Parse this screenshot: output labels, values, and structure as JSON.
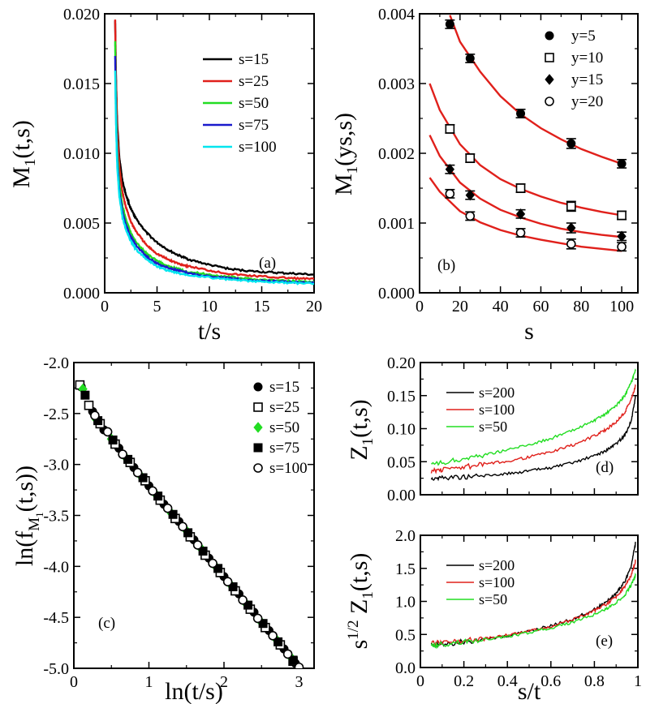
{
  "chart_data": [
    {
      "panel": "a",
      "type": "line",
      "tag": "(a)",
      "xlabel": "t/s",
      "ylabel": "M1(t,s)",
      "xlim": [
        0,
        20
      ],
      "ylim": [
        0,
        0.02
      ],
      "xticks": [
        0,
        5,
        10,
        15,
        20
      ],
      "yticks": [
        0.0,
        0.005,
        0.01,
        0.015,
        0.02
      ],
      "xtick_labels": [
        "0",
        "5",
        "10",
        "15",
        "20"
      ],
      "ytick_labels": [
        "0.000",
        "0.005",
        "0.010",
        "0.015",
        "0.020"
      ],
      "legend_position": "top-right",
      "series": [
        {
          "name": "s=15",
          "color": "#000000",
          "x": [
            1.0,
            1.05,
            1.1,
            1.2,
            1.4,
            1.7,
            2.0,
            2.5,
            3,
            4,
            5,
            6,
            7,
            8,
            10,
            12,
            14,
            16,
            18,
            20
          ],
          "y": [
            0.0196,
            0.0168,
            0.0147,
            0.0121,
            0.0097,
            0.008,
            0.0071,
            0.006,
            0.0053,
            0.0043,
            0.0036,
            0.0031,
            0.0027,
            0.0024,
            0.002,
            0.0017,
            0.00155,
            0.00145,
            0.00138,
            0.0013
          ]
        },
        {
          "name": "s=25",
          "color": "#e0201b",
          "x": [
            1.0,
            1.05,
            1.1,
            1.2,
            1.4,
            1.7,
            2.0,
            2.5,
            3,
            4,
            5,
            6,
            7,
            8,
            10,
            12,
            14,
            16,
            18,
            20
          ],
          "y": [
            0.0195,
            0.0165,
            0.0143,
            0.0115,
            0.009,
            0.0072,
            0.0062,
            0.0051,
            0.0044,
            0.0034,
            0.0028,
            0.0024,
            0.0021,
            0.0019,
            0.0016,
            0.00135,
            0.00122,
            0.00112,
            0.00104,
            0.00098
          ]
        },
        {
          "name": "s=50",
          "color": "#22dd22",
          "x": [
            1.0,
            1.05,
            1.1,
            1.2,
            1.4,
            1.7,
            2.0,
            2.5,
            3,
            4,
            5,
            6,
            7,
            8,
            10,
            12,
            14,
            16,
            18,
            20
          ],
          "y": [
            0.018,
            0.015,
            0.0128,
            0.0101,
            0.0078,
            0.0062,
            0.0053,
            0.0043,
            0.0036,
            0.0028,
            0.0023,
            0.0019,
            0.0017,
            0.0015,
            0.0013,
            0.00112,
            0.00098,
            0.0009,
            0.00084,
            0.0008
          ]
        },
        {
          "name": "s=75",
          "color": "#1a1acc",
          "x": [
            1.0,
            1.05,
            1.1,
            1.2,
            1.4,
            1.7,
            2.0,
            2.5,
            3,
            4,
            5,
            6,
            7,
            8,
            10,
            12,
            14,
            16,
            18,
            20
          ],
          "y": [
            0.017,
            0.0142,
            0.012,
            0.0095,
            0.0073,
            0.0058,
            0.0049,
            0.004,
            0.0034,
            0.0026,
            0.0021,
            0.0018,
            0.0016,
            0.0014,
            0.0012,
            0.00103,
            0.0009,
            0.00082,
            0.00076,
            0.00072
          ]
        },
        {
          "name": "s=100",
          "color": "#00e5ee",
          "x": [
            1.0,
            1.05,
            1.1,
            1.2,
            1.4,
            1.7,
            2.0,
            2.5,
            3,
            4,
            5,
            6,
            7,
            8,
            10,
            12,
            14,
            16,
            18,
            20
          ],
          "y": [
            0.016,
            0.0135,
            0.0114,
            0.009,
            0.0069,
            0.0054,
            0.0046,
            0.0037,
            0.0031,
            0.0024,
            0.0019,
            0.0016,
            0.0014,
            0.0013,
            0.0011,
            0.00094,
            0.00083,
            0.00075,
            0.0007,
            0.00066
          ]
        }
      ]
    },
    {
      "panel": "b",
      "type": "scatter",
      "tag": "(b)",
      "xlabel": "s",
      "ylabel": "M1(ys,s)",
      "xlim": [
        0,
        108
      ],
      "ylim": [
        0,
        0.004
      ],
      "xticks": [
        0,
        20,
        40,
        60,
        80,
        100
      ],
      "yticks": [
        0.0,
        0.001,
        0.002,
        0.003,
        0.004
      ],
      "xtick_labels": [
        "0",
        "20",
        "40",
        "60",
        "80",
        "100"
      ],
      "ytick_labels": [
        "0.000",
        "0.001",
        "0.002",
        "0.003",
        "0.004"
      ],
      "legend_position": "top-right",
      "series": [
        {
          "name": "y=5",
          "marker": "filled-circle",
          "x": [
            15,
            25,
            50,
            75,
            100
          ],
          "y": [
            0.00385,
            0.00336,
            0.00257,
            0.00214,
            0.00185
          ],
          "err": [
            6e-05,
            6e-05,
            6e-05,
            7e-05,
            6e-05
          ]
        },
        {
          "name": "y=10",
          "marker": "open-square",
          "x": [
            15,
            25,
            50,
            75,
            100
          ],
          "y": [
            0.00235,
            0.00193,
            0.0015,
            0.00124,
            0.00111
          ],
          "err": [
            6e-05,
            6e-05,
            6e-05,
            7e-05,
            6e-05
          ]
        },
        {
          "name": "y=15",
          "marker": "filled-diamond",
          "x": [
            15,
            25,
            50,
            75,
            100
          ],
          "y": [
            0.00177,
            0.0014,
            0.00113,
            0.00093,
            0.00081
          ],
          "err": [
            6e-05,
            6e-05,
            6e-05,
            7e-05,
            6e-05
          ]
        },
        {
          "name": "y=20",
          "marker": "open-circle",
          "x": [
            15,
            25,
            50,
            75,
            100
          ],
          "y": [
            0.00142,
            0.0011,
            0.00086,
            0.0007,
            0.00066
          ],
          "err": [
            6e-05,
            6e-05,
            6e-05,
            7e-05,
            6e-05
          ]
        }
      ],
      "fits": [
        {
          "color": "#e0201b",
          "x": [
            15,
            20,
            30,
            40,
            50,
            60,
            70,
            80,
            90,
            100
          ],
          "y": [
            0.00398,
            0.0036,
            0.00317,
            0.00282,
            0.00256,
            0.00236,
            0.0022,
            0.00206,
            0.00195,
            0.00185
          ]
        },
        {
          "color": "#e0201b",
          "x": [
            5,
            10,
            20,
            30,
            40,
            50,
            60,
            70,
            80,
            90,
            100
          ],
          "y": [
            0.003,
            0.00262,
            0.00213,
            0.00183,
            0.00163,
            0.00149,
            0.00138,
            0.00129,
            0.00122,
            0.00116,
            0.00111
          ]
        },
        {
          "color": "#e0201b",
          "x": [
            5,
            10,
            20,
            30,
            40,
            50,
            60,
            70,
            80,
            90,
            100
          ],
          "y": [
            0.00226,
            0.00196,
            0.00158,
            0.00135,
            0.00119,
            0.00108,
            0.00099,
            0.00092,
            0.00087,
            0.00083,
            0.0008
          ]
        },
        {
          "color": "#e0201b",
          "x": [
            5,
            10,
            20,
            30,
            40,
            50,
            60,
            70,
            80,
            90,
            100
          ],
          "y": [
            0.00165,
            0.00145,
            0.00117,
            0.00101,
            0.0009,
            0.00082,
            0.00076,
            0.00071,
            0.00066,
            0.00063,
            0.0006
          ]
        }
      ]
    },
    {
      "panel": "c",
      "type": "scatter",
      "tag": "(c)",
      "xlabel": "ln(t/s)",
      "ylabel": "ln(fM1(t,s))",
      "xlim": [
        0,
        3.2
      ],
      "ylim": [
        -5.0,
        -2.0
      ],
      "xticks": [
        0,
        1,
        2,
        3
      ],
      "yticks": [
        -5.0,
        -4.5,
        -4.0,
        -3.5,
        -3.0,
        -2.5,
        -2.0
      ],
      "xtick_labels": [
        "0",
        "1",
        "2",
        "3"
      ],
      "ytick_labels": [
        "-5.0",
        "-4.5",
        "-4.0",
        "-3.5",
        "-3.0",
        "-2.5",
        "-2.0"
      ],
      "legend_position": "top-right",
      "series": [
        {
          "name": "s=15",
          "marker": "filled-circle",
          "color": "#000000",
          "x": [
            0.1,
            0.25,
            0.4,
            0.6,
            0.8,
            1.0,
            1.2,
            1.4,
            1.6,
            1.8,
            2.0,
            2.2,
            2.4,
            2.6,
            2.8,
            2.95
          ],
          "y": [
            -2.24,
            -2.48,
            -2.66,
            -2.84,
            -3.03,
            -3.21,
            -3.39,
            -3.56,
            -3.74,
            -3.92,
            -4.1,
            -4.27,
            -4.45,
            -4.63,
            -4.81,
            -4.95
          ]
        },
        {
          "name": "s=25",
          "marker": "open-square",
          "color": "#000000",
          "x": [
            0.08,
            0.2,
            0.35,
            0.55,
            0.75,
            0.95,
            1.15,
            1.35,
            1.55,
            1.75,
            1.95,
            2.15,
            2.35,
            2.55,
            2.75,
            2.92
          ],
          "y": [
            -2.22,
            -2.42,
            -2.6,
            -2.8,
            -2.98,
            -3.16,
            -3.35,
            -3.53,
            -3.71,
            -3.89,
            -4.06,
            -4.24,
            -4.42,
            -4.6,
            -4.77,
            -4.93
          ]
        },
        {
          "name": "s=50",
          "marker": "filled-diamond",
          "color": "#22dd22",
          "x": [
            0.12,
            0.3,
            0.5,
            0.7,
            0.9,
            1.1,
            1.3,
            1.5,
            1.7,
            1.9,
            2.1,
            2.3,
            2.5,
            2.7,
            2.9
          ],
          "y": [
            -2.26,
            -2.56,
            -2.75,
            -2.94,
            -3.12,
            -3.3,
            -3.48,
            -3.65,
            -3.83,
            -4.01,
            -4.19,
            -4.37,
            -4.55,
            -4.72,
            -4.9
          ]
        },
        {
          "name": "s=75",
          "marker": "filled-square",
          "color": "#000000",
          "x": [
            0.15,
            0.32,
            0.52,
            0.72,
            0.92,
            1.12,
            1.32,
            1.52,
            1.72,
            1.92,
            2.12,
            2.32,
            2.52,
            2.72,
            2.92
          ],
          "y": [
            -2.32,
            -2.57,
            -2.76,
            -2.95,
            -3.13,
            -3.31,
            -3.49,
            -3.67,
            -3.85,
            -4.02,
            -4.2,
            -4.38,
            -4.56,
            -4.74,
            -4.92
          ]
        },
        {
          "name": "s=100",
          "marker": "open-circle",
          "color": "#000000",
          "x": [
            0.28,
            0.45,
            0.65,
            0.85,
            1.05,
            1.25,
            1.45,
            1.65,
            1.85,
            2.05,
            2.25,
            2.45,
            2.65,
            2.85,
            3.0
          ],
          "y": [
            -2.52,
            -2.68,
            -2.9,
            -3.08,
            -3.26,
            -3.43,
            -3.61,
            -3.79,
            -3.97,
            -4.15,
            -4.33,
            -4.51,
            -4.68,
            -4.86,
            -4.99
          ]
        }
      ]
    },
    {
      "panel": "d",
      "type": "line",
      "tag": "(d)",
      "xlabel": "",
      "ylabel": "Z1(t,s)",
      "xlim": [
        0,
        1
      ],
      "ylim": [
        0,
        0.2
      ],
      "xticks": [
        0,
        0.2,
        0.4,
        0.6,
        0.8,
        1.0
      ],
      "yticks": [
        0.0,
        0.05,
        0.1,
        0.15,
        0.2
      ],
      "xtick_labels": [],
      "ytick_labels": [
        "0.00",
        "0.05",
        "0.10",
        "0.15",
        "0.20"
      ],
      "legend_position": "top-left",
      "series": [
        {
          "name": "s=200",
          "color": "#000000",
          "x": [
            0.05,
            0.1,
            0.2,
            0.3,
            0.4,
            0.5,
            0.6,
            0.7,
            0.8,
            0.85,
            0.9,
            0.94,
            0.97,
            0.99
          ],
          "y": [
            0.025,
            0.026,
            0.027,
            0.029,
            0.032,
            0.036,
            0.041,
            0.048,
            0.059,
            0.066,
            0.077,
            0.09,
            0.112,
            0.15
          ]
        },
        {
          "name": "s=100",
          "color": "#e0201b",
          "x": [
            0.05,
            0.1,
            0.2,
            0.3,
            0.4,
            0.5,
            0.6,
            0.7,
            0.8,
            0.85,
            0.9,
            0.94,
            0.97,
            0.99
          ],
          "y": [
            0.036,
            0.038,
            0.042,
            0.046,
            0.051,
            0.057,
            0.065,
            0.075,
            0.089,
            0.098,
            0.11,
            0.125,
            0.145,
            0.165
          ]
        },
        {
          "name": "s=50",
          "color": "#22dd22",
          "x": [
            0.05,
            0.1,
            0.2,
            0.3,
            0.4,
            0.5,
            0.6,
            0.7,
            0.8,
            0.85,
            0.9,
            0.94,
            0.97,
            0.99
          ],
          "y": [
            0.045,
            0.048,
            0.055,
            0.061,
            0.068,
            0.076,
            0.085,
            0.097,
            0.112,
            0.122,
            0.135,
            0.15,
            0.17,
            0.188
          ]
        }
      ]
    },
    {
      "panel": "e",
      "type": "line",
      "tag": "(e)",
      "xlabel": "s/t",
      "ylabel": "s1/2 Z1(t,s)",
      "xlim": [
        0,
        1
      ],
      "ylim": [
        0,
        2.0
      ],
      "xticks": [
        0,
        0.2,
        0.4,
        0.6,
        0.8,
        1.0
      ],
      "yticks": [
        0.0,
        0.5,
        1.0,
        1.5,
        2.0
      ],
      "xtick_labels": [
        "0",
        "0.2",
        "0.4",
        "0.6",
        "0.8",
        "1"
      ],
      "ytick_labels": [
        "0.0",
        "0.5",
        "1.0",
        "1.5",
        "2.0"
      ],
      "legend_position": "top-left",
      "series": [
        {
          "name": "s=200",
          "color": "#000000",
          "x": [
            0.05,
            0.1,
            0.2,
            0.3,
            0.4,
            0.5,
            0.6,
            0.7,
            0.8,
            0.85,
            0.9,
            0.94,
            0.97,
            0.99
          ],
          "y": [
            0.33,
            0.35,
            0.39,
            0.43,
            0.48,
            0.55,
            0.63,
            0.73,
            0.88,
            0.98,
            1.12,
            1.3,
            1.55,
            1.9
          ]
        },
        {
          "name": "s=100",
          "color": "#e0201b",
          "x": [
            0.05,
            0.1,
            0.2,
            0.3,
            0.4,
            0.5,
            0.6,
            0.7,
            0.8,
            0.85,
            0.9,
            0.94,
            0.97,
            0.99
          ],
          "y": [
            0.36,
            0.38,
            0.41,
            0.44,
            0.49,
            0.55,
            0.62,
            0.72,
            0.86,
            0.95,
            1.07,
            1.22,
            1.4,
            1.62
          ]
        },
        {
          "name": "s=50",
          "color": "#22dd22",
          "x": [
            0.05,
            0.1,
            0.2,
            0.3,
            0.4,
            0.5,
            0.6,
            0.7,
            0.8,
            0.85,
            0.9,
            0.94,
            0.97,
            0.99
          ],
          "y": [
            0.33,
            0.35,
            0.39,
            0.43,
            0.47,
            0.53,
            0.6,
            0.68,
            0.8,
            0.88,
            0.98,
            1.1,
            1.25,
            1.4
          ]
        }
      ]
    }
  ]
}
